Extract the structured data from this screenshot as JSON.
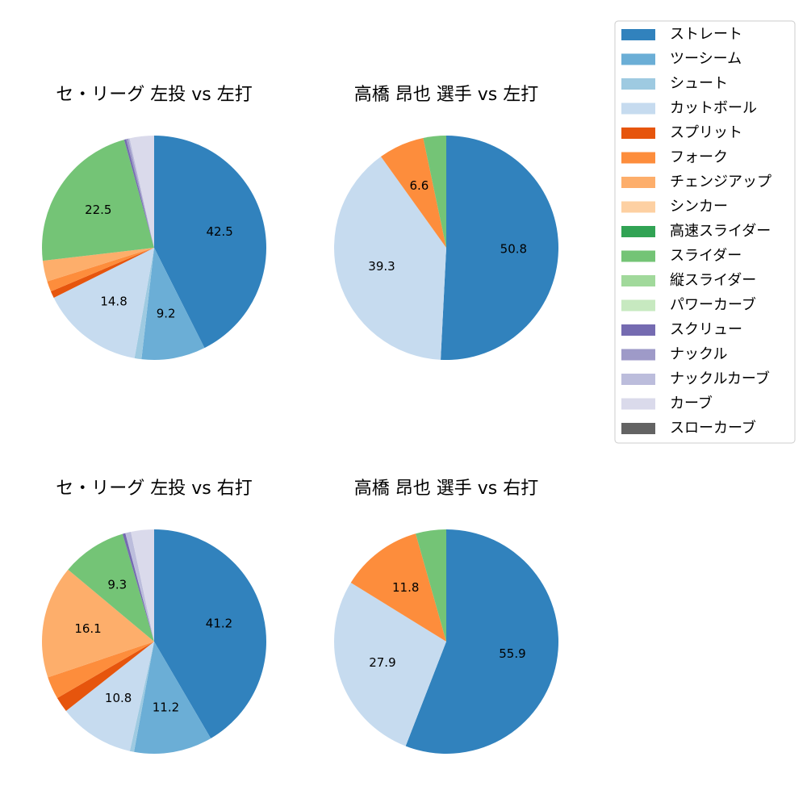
{
  "chart_data": [
    {
      "type": "pie",
      "title": "セ・リーグ 左投 vs 左打",
      "categories": [
        "ストレート",
        "ツーシーム",
        "シュート",
        "カットボール",
        "スプリット",
        "フォーク",
        "チェンジアップ",
        "スライダー",
        "スクリュー",
        "ナックル",
        "ナックルカーブ",
        "カーブ"
      ],
      "values": [
        42.5,
        9.2,
        1.0,
        14.8,
        1.0,
        1.5,
        3.0,
        22.5,
        0.3,
        0.3,
        0.2,
        3.5
      ]
    },
    {
      "type": "pie",
      "title": "高橋 昂也 選手 vs 左打",
      "categories": [
        "ストレート",
        "カットボール",
        "フォーク",
        "スライダー"
      ],
      "values": [
        50.8,
        39.3,
        6.6,
        3.3
      ]
    },
    {
      "type": "pie",
      "title": "セ・リーグ 左投 vs 右打",
      "categories": [
        "ストレート",
        "ツーシーム",
        "シュート",
        "カットボール",
        "スプリット",
        "フォーク",
        "チェンジアップ",
        "スライダー",
        "スクリュー",
        "ナックルカーブ",
        "カーブ"
      ],
      "values": [
        41.2,
        11.2,
        0.6,
        10.8,
        2.2,
        3.2,
        16.1,
        9.3,
        0.4,
        0.8,
        3.3
      ]
    },
    {
      "type": "pie",
      "title": "高橋 昂也 選手 vs 右打",
      "categories": [
        "ストレート",
        "カットボール",
        "フォーク",
        "スライダー"
      ],
      "values": [
        55.9,
        27.9,
        11.8,
        4.4
      ]
    }
  ],
  "legend": {
    "names": [
      "ストレート",
      "ツーシーム",
      "シュート",
      "カットボール",
      "スプリット",
      "フォーク",
      "チェンジアップ",
      "シンカー",
      "高速スライダー",
      "スライダー",
      "縦スライダー",
      "パワーカーブ",
      "スクリュー",
      "ナックル",
      "ナックルカーブ",
      "カーブ",
      "スローカーブ"
    ],
    "colors": [
      "#3182bd",
      "#6baed6",
      "#9ecae1",
      "#c6dbef",
      "#e6550d",
      "#fd8d3c",
      "#fdae6b",
      "#fdd0a2",
      "#31a354",
      "#74c476",
      "#a1d99b",
      "#c7e9c0",
      "#756bb1",
      "#9e9ac8",
      "#bcbddc",
      "#dadaeb",
      "#636363"
    ]
  }
}
